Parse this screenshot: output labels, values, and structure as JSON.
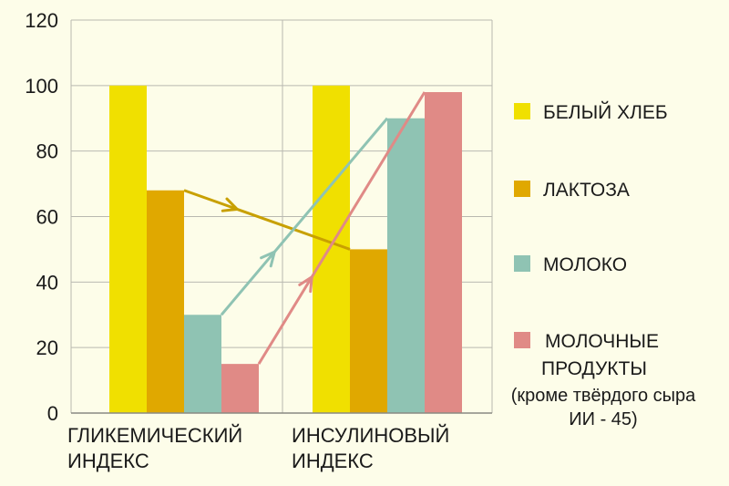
{
  "chart_data": {
    "type": "bar",
    "categories": [
      [
        "ГЛИКЕМИЧЕСКИЙ",
        "ИНДЕКС"
      ],
      [
        "ИНСУЛИНОВЫЙ",
        "ИНДЕКС"
      ]
    ],
    "ylim": [
      0,
      120
    ],
    "yticks": [
      0,
      20,
      40,
      60,
      80,
      100,
      120
    ],
    "grid": true,
    "legend_position": "right",
    "series": [
      {
        "name": "БЕЛЫЙ ХЛЕБ",
        "values": [
          100,
          100
        ],
        "color": "#f0e000"
      },
      {
        "name": "ЛАКТОЗА",
        "values": [
          68,
          50
        ],
        "color": "#e0a800"
      },
      {
        "name": "МОЛОКО",
        "values": [
          30,
          90
        ],
        "color": "#8fc3b3"
      },
      {
        "name": "МОЛОЧНЫЕ ПРОДУКТЫ",
        "values": [
          15,
          98
        ],
        "color": "#e08a86"
      }
    ],
    "legend_note": [
      "(кроме твёрдого сыра",
      "ИИ - 45)"
    ],
    "arrows": [
      {
        "series": "ЛАКТОЗА",
        "color": "#c8a000"
      },
      {
        "series": "МОЛОКО",
        "color": "#8fc3b3"
      },
      {
        "series": "МОЛОЧНЫЕ ПРОДУКТЫ",
        "color": "#e08a86"
      }
    ]
  }
}
